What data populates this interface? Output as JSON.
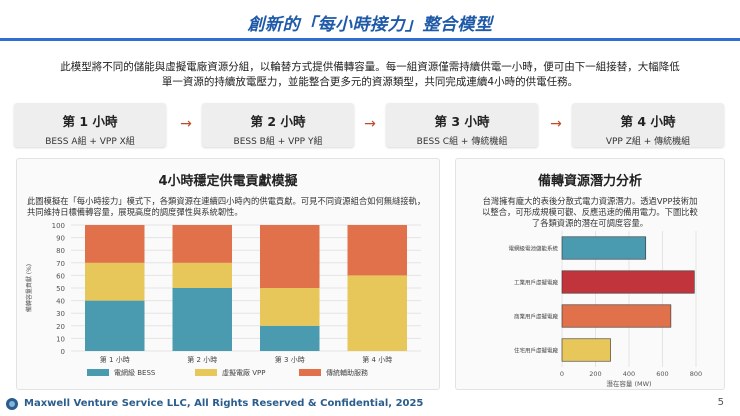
{
  "title": "創新的「每小時接力」整合模型",
  "intro": "此模型將不同的儲能與虛擬電廠資源分組，以輪替方式提供備轉容量。每一組資源僅需持續供電一小時，便可由下一組接替，大幅降低單一資源的持續放電壓力，並能整合更多元的資源類型，共同完成連續4小時的供電任務。",
  "steps": [
    {
      "title": "第 1 小時",
      "sub": "BESS A組 + VPP X組"
    },
    {
      "title": "第 2 小時",
      "sub": "BESS B組 + VPP Y組"
    },
    {
      "title": "第 3 小時",
      "sub": "BESS C組 + 傳統機組"
    },
    {
      "title": "第 4 小時",
      "sub": "VPP Z組 + 傳統機組"
    }
  ],
  "arrow_glyph": "→",
  "left_panel": {
    "title": "4小時穩定供電貢獻模擬",
    "desc": "此圖模擬在「每小時接力」模式下，各類資源在連續四小時內的供電貢獻。可見不同資源組合如何無縫接軌，共同維持日標備轉容量，展現高度的調度彈性與系統韌性。"
  },
  "right_panel": {
    "title": "備轉資源潛力分析",
    "desc": "台灣擁有龐大的表後分散式電力資源潛力。透過VPP技術加以整合，可形成規模可觀、反應迅速的備用電力。下圖比較了各類資源的潛在可調度容量。"
  },
  "chart_data": [
    {
      "type": "bar",
      "stacked": true,
      "categories": [
        "第 1 小時",
        "第 2 小時",
        "第 3 小時",
        "第 4 小時"
      ],
      "series": [
        {
          "name": "電網級 BESS",
          "color": "#4a9bb0",
          "values": [
            40,
            50,
            20,
            0
          ]
        },
        {
          "name": "虛擬電廠 VPP",
          "color": "#e8c75a",
          "values": [
            30,
            20,
            30,
            60
          ]
        },
        {
          "name": "傳統輔助服務",
          "color": "#e0714a",
          "values": [
            30,
            30,
            50,
            40
          ]
        }
      ],
      "ylabel": "備轉容量貢獻 (%)",
      "ylim": [
        0,
        100
      ],
      "yticks": [
        "0",
        "10",
        "20",
        "30",
        "40",
        "50",
        "60",
        "70",
        "80",
        "90",
        "100"
      ],
      "legend_position": "bottom"
    },
    {
      "type": "bar",
      "orientation": "horizontal",
      "categories": [
        "電網級電池儲能系統",
        "工業用戶虛擬電廠",
        "商業用戶虛擬電廠",
        "住宅用戶虛擬電廠"
      ],
      "values": [
        500,
        790,
        650,
        290
      ],
      "colors": [
        "#4a9bb0",
        "#c2343c",
        "#e0714a",
        "#e8c75a"
      ],
      "xlabel": "潛在容量 (MW)",
      "xlim": [
        0,
        800
      ],
      "xticks": [
        "0",
        "200",
        "400",
        "600",
        "800"
      ]
    }
  ],
  "footer": {
    "text": "Maxwell Venture Service LLC, All Rights Reserved & Confidential, 2025",
    "page": "5"
  }
}
